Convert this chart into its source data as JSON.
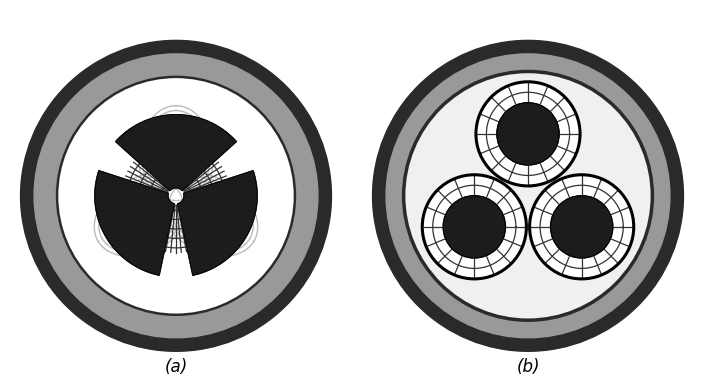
{
  "fig_width": 7.04,
  "fig_height": 3.84,
  "dpi": 100,
  "bg_color": "#ffffff",
  "label_a": "(a)",
  "label_b": "(b)",
  "label_fontsize": 12,
  "outer_sheath_dark": "#2a2a2a",
  "outer_sheath_gray": "#999999",
  "inner_white": "#ffffff",
  "light_gray_field": "#bbbbbb",
  "dark_conductor": "#1c1c1c",
  "field_line_color": "#333333",
  "sub_bg": "#eeeeee"
}
